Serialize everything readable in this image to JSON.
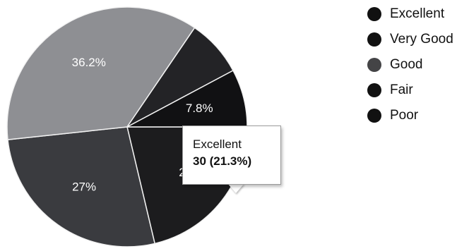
{
  "chart_data": {
    "type": "pie",
    "categories": [
      "Excellent",
      "Very Good",
      "Good",
      "Fair",
      "Poor"
    ],
    "slices": [
      {
        "name": "Excellent",
        "percent": 21.3,
        "label": "21",
        "color": "#1c1c1e"
      },
      {
        "name": "Poor",
        "percent": 27,
        "label": "27%",
        "color": "#3a3b3f"
      },
      {
        "name": "Good",
        "percent": 36.2,
        "label": "36.2%",
        "color": "#8e8f93"
      },
      {
        "name": "Very Good",
        "percent": 7.7,
        "label": "",
        "color": "#232326"
      },
      {
        "name": "Fair",
        "percent": 7.8,
        "label": "7.8%",
        "color": "#111113"
      }
    ],
    "legend": {
      "position": "top-right",
      "items": [
        {
          "label": "Excellent",
          "color": "#111111"
        },
        {
          "label": "Very Good",
          "color": "#111111"
        },
        {
          "label": "Good",
          "color": "#444446"
        },
        {
          "label": "Fair",
          "color": "#111111"
        },
        {
          "label": "Poor",
          "color": "#111111"
        }
      ]
    },
    "tooltip": {
      "title": "Excellent",
      "value": "30 (21.3%)"
    }
  }
}
